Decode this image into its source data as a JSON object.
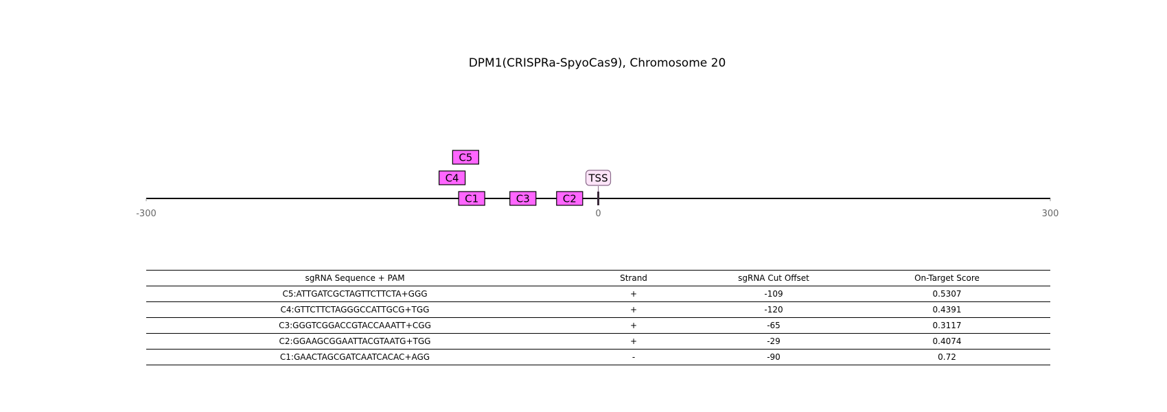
{
  "title": "DPM1(CRISPRa-SpyoCas9), Chromosome 20",
  "colors": {
    "guide_fill": "#ff66ff",
    "guide_stroke": "#000000",
    "tss_fill": "#fce4f8",
    "tss_stroke": "#8a6a8a",
    "axis": "#000000",
    "tick_label": "#666666"
  },
  "chart_data": {
    "type": "track",
    "xlim": [
      -300,
      300
    ],
    "ticks": [
      "-300",
      "0",
      "300"
    ],
    "tss": {
      "label": "TSS",
      "position": 0
    },
    "guides": [
      {
        "label": "C5",
        "position": -88,
        "row": 2
      },
      {
        "label": "C4",
        "position": -97,
        "row": 1
      },
      {
        "label": "C1",
        "position": -84,
        "row": 0
      },
      {
        "label": "C3",
        "position": -50,
        "row": 0
      },
      {
        "label": "C2",
        "position": -19,
        "row": 0
      }
    ]
  },
  "table": {
    "headers": [
      "sgRNA Sequence + PAM",
      "Strand",
      "sgRNA Cut Offset",
      "On-Target Score"
    ],
    "rows": [
      [
        "C5:ATTGATCGCTAGTTCTTCTA+GGG",
        "+",
        "-109",
        "0.5307"
      ],
      [
        "C4:GTTCTTCTAGGGCCATTGCG+TGG",
        "+",
        "-120",
        "0.4391"
      ],
      [
        "C3:GGGTCGGACCGTACCAAATT+CGG",
        "+",
        "-65",
        "0.3117"
      ],
      [
        "C2:GGAAGCGGAATTACGTAATG+TGG",
        "+",
        "-29",
        "0.4074"
      ],
      [
        "C1:GAACTAGCGATCAATCACAC+AGG",
        "-",
        "-90",
        "0.72"
      ]
    ]
  }
}
